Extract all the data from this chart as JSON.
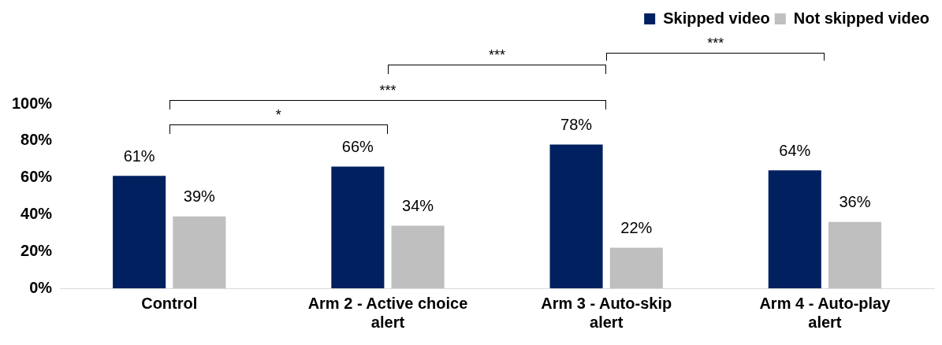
{
  "chart_data": {
    "type": "bar",
    "categories": [
      "Control",
      "Arm 2 - Active choice alert",
      "Arm 3 - Auto-skip alert",
      "Arm 4 - Auto-play alert"
    ],
    "series": [
      {
        "name": "Skipped video",
        "color": "#002060",
        "values": [
          61,
          66,
          78,
          64
        ],
        "value_labels": [
          "61%",
          "66%",
          "78%",
          "64%"
        ]
      },
      {
        "name": "Not skipped video",
        "color": "#bfbfbf",
        "values": [
          39,
          34,
          22,
          36
        ],
        "value_labels": [
          "39%",
          "34%",
          "22%",
          "36%"
        ]
      }
    ],
    "ylim": [
      0,
      100
    ],
    "yticks": [
      {
        "value": 0,
        "label": "0%"
      },
      {
        "value": 20,
        "label": "20%"
      },
      {
        "value": 40,
        "label": "40%"
      },
      {
        "value": 60,
        "label": "60%"
      },
      {
        "value": 80,
        "label": "80%"
      },
      {
        "value": 100,
        "label": "100%"
      }
    ],
    "grid": false,
    "legend": "top right",
    "annotations": [
      "*",
      "***",
      "***",
      "***"
    ]
  }
}
